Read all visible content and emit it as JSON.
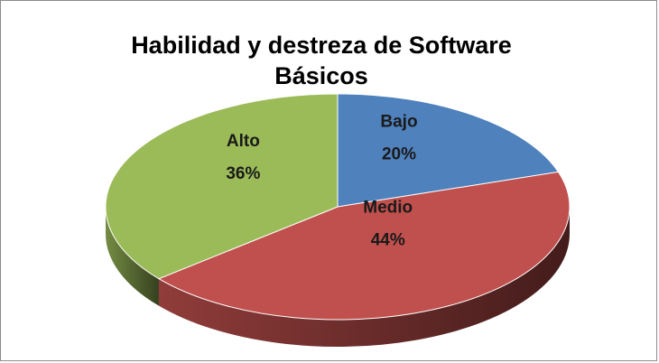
{
  "chart_data": {
    "type": "pie3d",
    "title": "Habilidad y destreza de Software Básicos",
    "categories": [
      "Bajo",
      "Medio",
      "Alto"
    ],
    "values": [
      20,
      44,
      36
    ],
    "value_labels": [
      "20%",
      "44%",
      "36%"
    ],
    "colors": [
      "#4f81bd",
      "#c0504d",
      "#9bbb59"
    ]
  }
}
